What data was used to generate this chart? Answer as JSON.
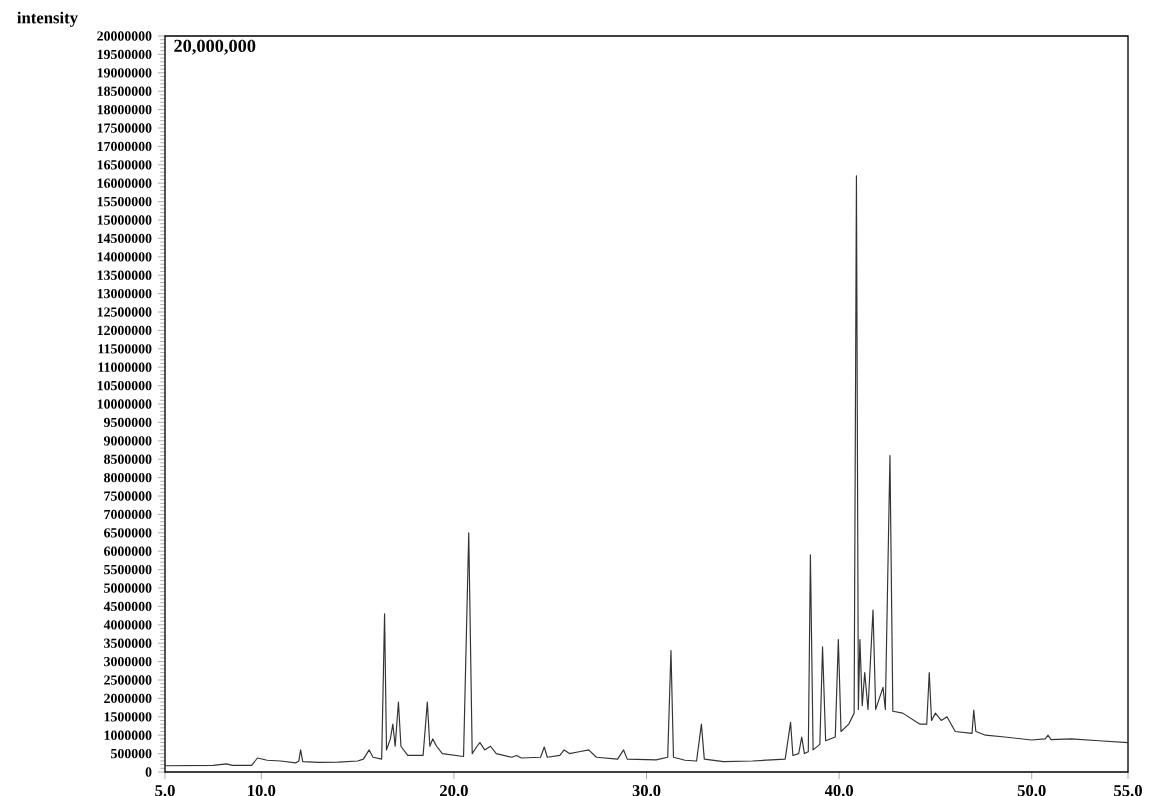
{
  "chart_data": {
    "type": "line",
    "ylabel": "intensity",
    "annotations": [
      "20,000,000"
    ],
    "xlim": [
      5,
      55
    ],
    "ylim": [
      0,
      20000000
    ],
    "xticks": [
      {
        "value": 5,
        "label": "5.0"
      },
      {
        "value": 10,
        "label": "10.0"
      },
      {
        "value": 20,
        "label": "20.0"
      },
      {
        "value": 30,
        "label": "30.0"
      },
      {
        "value": 40,
        "label": "40.0"
      },
      {
        "value": 50,
        "label": "50.0"
      },
      {
        "value": 55,
        "label": "55.0"
      }
    ],
    "yticks": [
      0,
      500000,
      1000000,
      1500000,
      2000000,
      2500000,
      3000000,
      3500000,
      4000000,
      4500000,
      5000000,
      5500000,
      6000000,
      6500000,
      7000000,
      7500000,
      8000000,
      8500000,
      9000000,
      9500000,
      10000000,
      10500000,
      11000000,
      11500000,
      12000000,
      12500000,
      13000000,
      13500000,
      14000000,
      14500000,
      15000000,
      15500000,
      16000000,
      16500000,
      17000000,
      17500000,
      18000000,
      18500000,
      19000000,
      19500000,
      20000000
    ],
    "series": [
      {
        "color": "#333333",
        "x": [
          5.0,
          7.5,
          8.2,
          8.5,
          9.5,
          9.8,
          10.3,
          11.0,
          11.8,
          11.95,
          12.04,
          12.15,
          13.0,
          14.0,
          15.0,
          15.3,
          15.6,
          15.8,
          16.25,
          16.4,
          16.5,
          16.7,
          16.83,
          16.95,
          17.12,
          17.25,
          17.6,
          18.4,
          18.62,
          18.75,
          18.9,
          19.1,
          19.4,
          20.5,
          20.77,
          20.95,
          21.2,
          21.35,
          21.6,
          21.9,
          22.2,
          23.0,
          23.25,
          23.5,
          24.5,
          24.69,
          24.85,
          25.5,
          25.72,
          26.0,
          26.5,
          27.0,
          27.4,
          28.5,
          28.81,
          29.0,
          30.5,
          31.1,
          31.27,
          31.4,
          32.0,
          32.6,
          32.85,
          33.0,
          34.0,
          35.5,
          37.2,
          37.48,
          37.6,
          37.9,
          38.06,
          38.2,
          38.4,
          38.51,
          38.65,
          39.0,
          39.14,
          39.3,
          39.8,
          39.96,
          40.1,
          40.5,
          40.78,
          40.9,
          41.0,
          41.08,
          41.2,
          41.33,
          41.5,
          41.76,
          41.9,
          42.28,
          42.4,
          42.64,
          42.79,
          43.3,
          44.2,
          44.55,
          44.68,
          44.8,
          45.0,
          45.3,
          45.6,
          46.03,
          46.9,
          46.99,
          47.1,
          47.6,
          48.6,
          49.99,
          50.7,
          50.85,
          51.0,
          52.04,
          53.5,
          55.0
        ],
        "values": [
          170000,
          180000,
          220000,
          180000,
          180000,
          380000,
          320000,
          300000,
          250000,
          300000,
          600000,
          280000,
          260000,
          270000,
          300000,
          350000,
          600000,
          400000,
          350000,
          4300000,
          600000,
          900000,
          1300000,
          700000,
          1900000,
          700000,
          450000,
          450000,
          1900000,
          700000,
          900000,
          700000,
          500000,
          420000,
          6500000,
          500000,
          700000,
          800000,
          600000,
          700000,
          500000,
          400000,
          450000,
          380000,
          400000,
          680000,
          400000,
          450000,
          600000,
          500000,
          550000,
          600000,
          400000,
          350000,
          600000,
          350000,
          330000,
          400000,
          3300000,
          400000,
          320000,
          300000,
          1300000,
          350000,
          280000,
          300000,
          350000,
          1350000,
          450000,
          500000,
          950000,
          500000,
          550000,
          5900000,
          600000,
          750000,
          3400000,
          850000,
          950000,
          3600000,
          1100000,
          1300000,
          1600000,
          16200000,
          1700000,
          3600000,
          1800000,
          2700000,
          1700000,
          4400000,
          1700000,
          2300000,
          1700000,
          8600000,
          1650000,
          1600000,
          1300000,
          1300000,
          2700000,
          1400000,
          1600000,
          1400000,
          1500000,
          1100000,
          1050000,
          1680000,
          1100000,
          1000000,
          950000,
          870000,
          900000,
          1000000,
          880000,
          900000,
          850000,
          800000
        ]
      }
    ]
  }
}
